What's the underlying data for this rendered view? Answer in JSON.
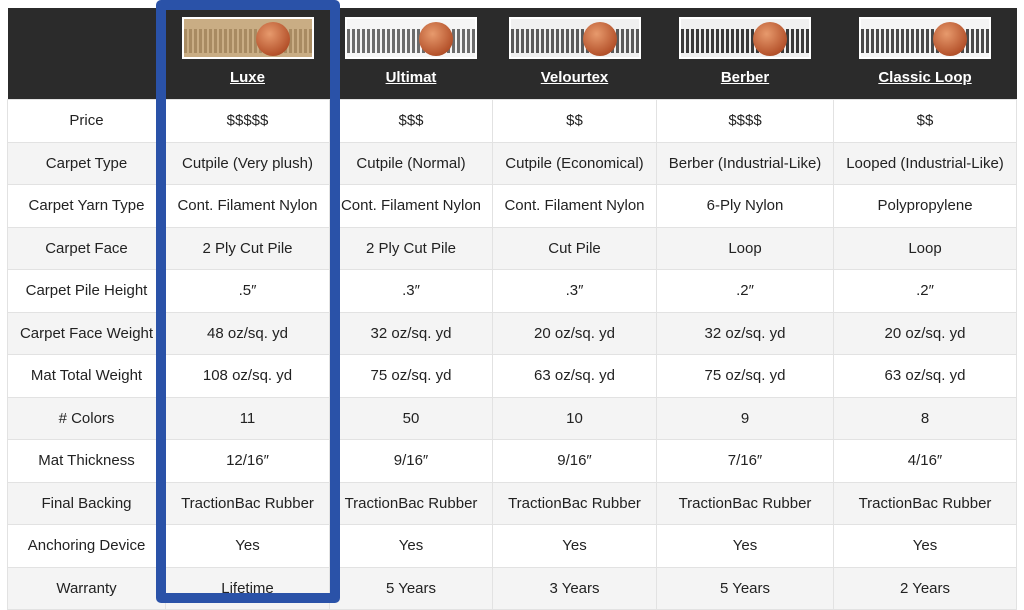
{
  "products": [
    {
      "name": "Luxe",
      "swatch": [
        "#c9ad84",
        "#a88b62"
      ]
    },
    {
      "name": "Ultimat",
      "swatch": [
        "#f5f5f5",
        "#6c6c6c"
      ]
    },
    {
      "name": "Velourtex",
      "swatch": [
        "#f0f0f0",
        "#5a5a5a"
      ]
    },
    {
      "name": "Berber",
      "swatch": [
        "#f0f0f0",
        "#3a3a3a"
      ]
    },
    {
      "name": "Classic Loop",
      "swatch": [
        "#f5f5f5",
        "#4a4a4a"
      ]
    }
  ],
  "highlight_color": "#2a52a8",
  "highlighted_product": "Luxe",
  "rows": [
    {
      "label": "Price",
      "values": [
        "$$$$$",
        "$$$",
        "$$",
        "$$$$",
        "$$"
      ]
    },
    {
      "label": "Carpet Type",
      "values": [
        "Cutpile (Very plush)",
        "Cutpile (Normal)",
        "Cutpile (Economical)",
        "Berber (Industrial-Like)",
        "Looped (Industrial-Like)"
      ]
    },
    {
      "label": "Carpet Yarn Type",
      "values": [
        "Cont. Filament Nylon",
        "Cont. Filament Nylon",
        "Cont. Filament Nylon",
        "6-Ply Nylon",
        "Polypropylene"
      ]
    },
    {
      "label": "Carpet Face",
      "values": [
        "2 Ply Cut Pile",
        "2 Ply Cut Pile",
        "Cut Pile",
        "Loop",
        "Loop"
      ]
    },
    {
      "label": "Carpet Pile Height",
      "values": [
        ".5″",
        ".3″",
        ".3″",
        ".2″",
        ".2″"
      ]
    },
    {
      "label": "Carpet Face Weight",
      "values": [
        "48 oz/sq. yd",
        "32 oz/sq. yd",
        "20 oz/sq. yd",
        "32 oz/sq. yd",
        "20 oz/sq. yd"
      ]
    },
    {
      "label": "Mat Total Weight",
      "values": [
        "108 oz/sq. yd",
        "75 oz/sq. yd",
        "63 oz/sq. yd",
        "75 oz/sq. yd",
        "63 oz/sq. yd"
      ]
    },
    {
      "label": "# Colors",
      "values": [
        "11",
        "50",
        "10",
        "9",
        "8"
      ]
    },
    {
      "label": "Mat Thickness",
      "values": [
        "12/16″",
        "9/16″",
        "9/16″",
        "7/16″",
        "4/16″"
      ]
    },
    {
      "label": "Final Backing",
      "values": [
        "TractionBac Rubber",
        "TractionBac Rubber",
        "TractionBac Rubber",
        "TractionBac Rubber",
        "TractionBac Rubber"
      ]
    },
    {
      "label": "Anchoring Device",
      "values": [
        "Yes",
        "Yes",
        "Yes",
        "Yes",
        "Yes"
      ]
    },
    {
      "label": "Warranty",
      "values": [
        "Lifetime",
        "5 Years",
        "3 Years",
        "5 Years",
        "2 Years"
      ]
    }
  ]
}
